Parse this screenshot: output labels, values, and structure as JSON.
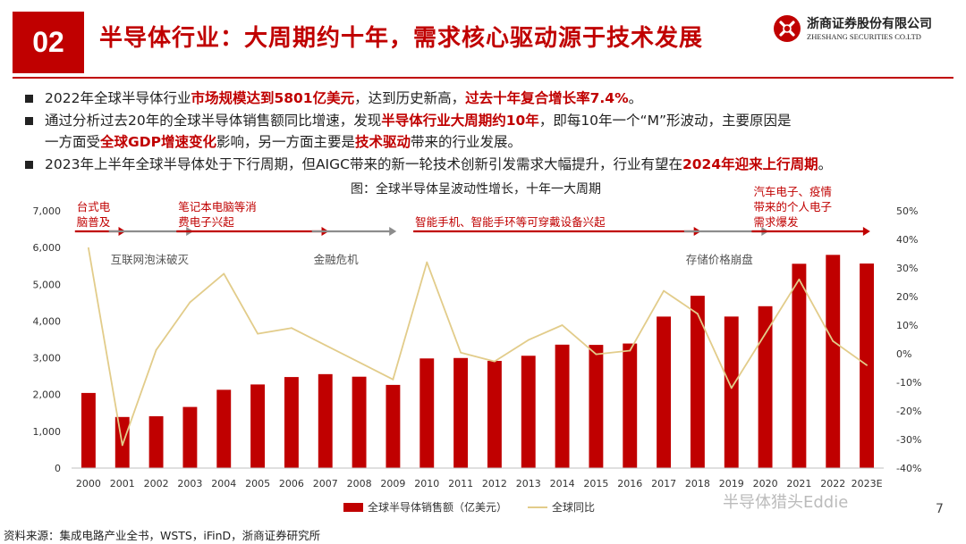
{
  "header": {
    "section_number": "02",
    "title": "半导体行业：大周期约十年，需求核心驱动源于技术发展",
    "logo_cn": "浙商证券股份有限公司",
    "logo_en": "ZHESHANG SECURITIES CO.LTD"
  },
  "bullets": [
    {
      "segments": [
        {
          "text": "2022年全球半导体行业",
          "hl": false
        },
        {
          "text": "市场规模达到5801亿美元",
          "hl": true
        },
        {
          "text": "，达到历史新高，",
          "hl": false
        },
        {
          "text": "过去十年复合增长率7.4%",
          "hl": true
        },
        {
          "text": "。",
          "hl": false
        }
      ]
    },
    {
      "segments": [
        {
          "text": "通过分析过去20年的全球半导体销售额同比增速，发现",
          "hl": false
        },
        {
          "text": "半导体行业大周期约10年",
          "hl": true
        },
        {
          "text": "，即每10年一个“M”形波动，主要原因是",
          "hl": false
        }
      ]
    },
    {
      "segments": [
        {
          "text": "一方面受",
          "hl": false
        },
        {
          "text": "全球GDP增速变化",
          "hl": true
        },
        {
          "text": "影响，另一方面主要是",
          "hl": false
        },
        {
          "text": "技术驱动",
          "hl": true
        },
        {
          "text": "带来的行业发展。",
          "hl": false
        }
      ]
    },
    {
      "segments": [
        {
          "text": "2023年上半年全球半导体处于下行周期，但AIGC带来的新一轮技术创新引发需求大幅提升，行业有望在",
          "hl": false
        },
        {
          "text": "2024年迎来上行周期",
          "hl": true
        },
        {
          "text": "。",
          "hl": false
        }
      ]
    }
  ],
  "chart_data": {
    "type": "bar",
    "title": "图：全球半导体呈波动性增长，十年一大周期",
    "categories": [
      "2000",
      "2001",
      "2002",
      "2003",
      "2004",
      "2005",
      "2006",
      "2007",
      "2008",
      "2009",
      "2010",
      "2011",
      "2012",
      "2013",
      "2014",
      "2015",
      "2016",
      "2017",
      "2018",
      "2019",
      "2020",
      "2021",
      "2022",
      "2023E"
    ],
    "series": [
      {
        "name": "全球半导体销售额（亿美元）",
        "axis": "left",
        "kind": "bar",
        "color": "#c00000",
        "values": [
          2044,
          1390,
          1410,
          1663,
          2130,
          2275,
          2477,
          2556,
          2486,
          2263,
          2983,
          2995,
          2916,
          3056,
          3358,
          3352,
          3389,
          4122,
          4688,
          4123,
          4404,
          5559,
          5801,
          5566
        ]
      },
      {
        "name": "全球同比",
        "axis": "right",
        "kind": "line",
        "color": "#e2cc8a",
        "values": [
          37,
          -32,
          1.3,
          18,
          28,
          7,
          9,
          3,
          -3,
          -9,
          32,
          0.4,
          -2.7,
          4.8,
          10,
          -0.2,
          1.1,
          22,
          14,
          -12,
          7,
          26,
          4.4,
          -4
        ]
      }
    ],
    "y_left": {
      "min": 0,
      "max": 7000,
      "ticks": [
        "0",
        "1,000",
        "2,000",
        "3,000",
        "4,000",
        "5,000",
        "6,000",
        "7,000"
      ]
    },
    "y_right": {
      "min": -40,
      "max": 50,
      "ticks": [
        "-40%",
        "-30%",
        "-20%",
        "-10%",
        "0%",
        "10%",
        "20%",
        "30%",
        "40%",
        "50%"
      ]
    },
    "legend_position": "bottom",
    "annotations": [
      {
        "lines": [
          "台式电",
          "脑普及"
        ],
        "color": "#c00000",
        "from": "2000",
        "to": "2001",
        "arrow": "red",
        "text_pos": "above"
      },
      {
        "lines": [
          "互联网泡沫破灭"
        ],
        "color": "#555555",
        "from": "2001",
        "to": "2003",
        "arrow": "gray",
        "text_pos": "below"
      },
      {
        "lines": [
          "笔记本电脑等消",
          "费电子兴起"
        ],
        "color": "#c00000",
        "from": "2003",
        "to": "2007",
        "arrow": "red",
        "text_pos": "above"
      },
      {
        "lines": [
          "金融危机"
        ],
        "color": "#555555",
        "from": "2007",
        "to": "2009",
        "arrow": "gray",
        "text_pos": "below"
      },
      {
        "lines": [
          "智能手机、智能手环等可穿戴设备兴起"
        ],
        "color": "#c00000",
        "from": "2010",
        "to": "2018",
        "arrow": "red",
        "text_pos": "above"
      },
      {
        "lines": [
          "存储价格崩盘"
        ],
        "color": "#555555",
        "from": "2018",
        "to": "2020",
        "arrow": "gray",
        "text_pos": "below"
      },
      {
        "lines": [
          "汽车电子、疫情",
          "带来的个人电子",
          "需求爆发"
        ],
        "color": "#c00000",
        "from": "2020",
        "to": "2023E",
        "arrow": "red",
        "text_pos": "above"
      }
    ]
  },
  "footer": {
    "source": "资料来源：集成电路产业全书，WSTS，iFinD，浙商证券研究所",
    "page": "7",
    "watermark": "半导体猎头Eddie"
  },
  "colors": {
    "brand_red": "#c00000",
    "line_gold": "#e2cc8a",
    "arrow_gray": "#8c8c8c"
  }
}
